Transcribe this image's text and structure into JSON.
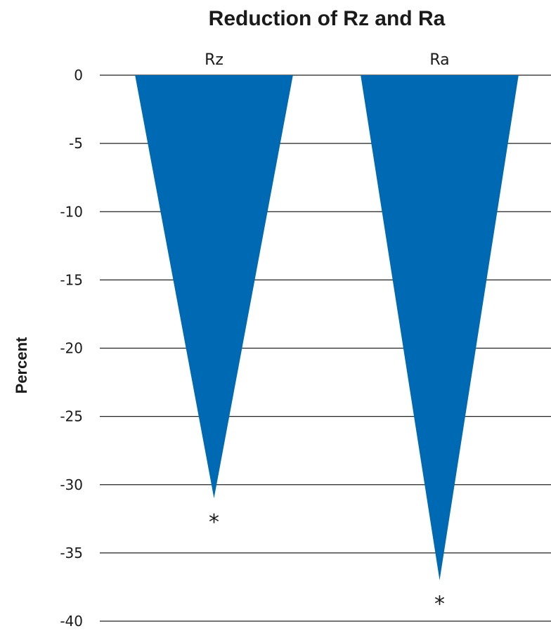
{
  "chart_data": {
    "type": "bar",
    "title": "Reduction of Rz and Ra",
    "ylabel": "Percent",
    "xlabel": "",
    "categories": [
      "Rz",
      "Ra"
    ],
    "values": [
      -31,
      -37
    ],
    "markers": [
      "*",
      "*"
    ],
    "yticks": [
      0,
      -5,
      -10,
      -15,
      -20,
      -25,
      -30,
      -35,
      -40
    ],
    "ytick_labels": [
      "0",
      "-5",
      "-10",
      "-15",
      "-20",
      "-25",
      "-30",
      "-35",
      "-40"
    ],
    "ylim": [
      -40,
      0
    ],
    "grid": true,
    "bar_shape": "triangle",
    "category_axis_position": "top",
    "bar_color": "#0069b4"
  }
}
